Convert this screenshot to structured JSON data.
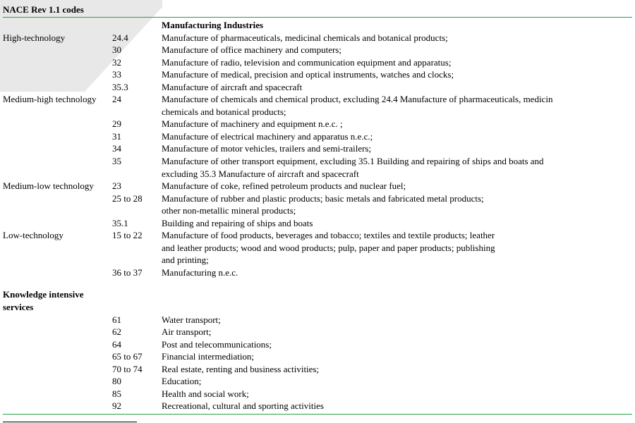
{
  "colors": {
    "green": "#2aa048",
    "black": "#000000",
    "wm": "#e8e8e8"
  },
  "header": {
    "title": "NACE Rev 1.1 codes",
    "column_titles": {
      "cat": "",
      "code": "",
      "desc": "Manufacturing Industries"
    }
  },
  "sections": [
    {
      "name": "High-technology",
      "rows": [
        {
          "code": "24.4",
          "desc": "Manufacture of pharmaceuticals, medicinal chemicals and botanical products;"
        },
        {
          "code": "30",
          "desc": "Manufacture of office machinery and computers;"
        },
        {
          "code": "32",
          "desc": "Manufacture of radio, television and communication equipment and apparatus;"
        },
        {
          "code": "33",
          "desc": "Manufacture of medical, precision and optical instruments, watches and clocks;"
        },
        {
          "code": "35.3",
          "desc": "Manufacture of aircraft and spacecraft"
        }
      ]
    },
    {
      "name": "Medium-high technology",
      "rows": [
        {
          "code": "24",
          "desc": "Manufacture of chemicals and chemical product, excluding 24.4 Manufacture of pharmaceuticals, medicin\nchemicals and botanical products;"
        },
        {
          "code": "29",
          "desc": "Manufacture of machinery and equipment n.e.c. ;"
        },
        {
          "code": "31",
          "desc": "Manufacture of electrical machinery and apparatus n.e.c.;"
        },
        {
          "code": "34",
          "desc": "Manufacture of motor vehicles, trailers and semi-trailers;"
        },
        {
          "code": "35",
          "desc": "Manufacture of other transport equipment, excluding 35.1 Building and repairing of ships and boats and\n excluding 35.3 Manufacture of aircraft and spacecraft"
        }
      ]
    },
    {
      "name": "Medium-low technology",
      "rows": [
        {
          "code": "23",
          "desc": "Manufacture of coke, refined petroleum products and nuclear fuel;"
        },
        {
          "code": "25 to 28",
          "desc": "Manufacture of rubber and plastic products; basic metals and fabricated metal products;\nother non-metallic mineral products;"
        },
        {
          "code": "35.1",
          "desc": "Building and repairing of ships and boats"
        }
      ]
    },
    {
      "name": "Low-technology",
      "rows": [
        {
          "code": " 15 to 22",
          "desc": "Manufacture of food products, beverages and tobacco; textiles and textile products; leather\nand leather products; wood and wood products; pulp, paper and paper products; publishing\nand printing;"
        },
        {
          "code": "36 to 37",
          "desc": "Manufacturing n.e.c."
        }
      ]
    }
  ],
  "kis_label_line1": "Knowledge intensive",
  "kis_label_line2": "services",
  "kis_rows": [
    {
      "code": "61",
      "desc": "Water transport;"
    },
    {
      "code": "62",
      "desc": "Air transport;"
    },
    {
      "code": "64",
      "desc": "Post and telecommunications;"
    },
    {
      "code": "65 to 67",
      "desc": "Financial intermediation;"
    },
    {
      "code": "70 to 74",
      "desc": "Real estate, renting and business activities;"
    },
    {
      "code": "80",
      "desc": "Education;"
    },
    {
      "code": "85",
      "desc": "Health and social work;"
    },
    {
      "code": "92",
      "desc": "Recreational, cultural and sporting activities"
    }
  ]
}
